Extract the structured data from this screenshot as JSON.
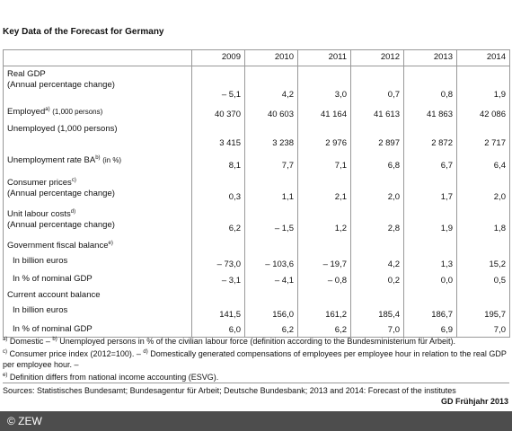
{
  "title": "Key Data of the Forecast for Germany",
  "table": {
    "columns": [
      "2009",
      "2010",
      "2011",
      "2012",
      "2013",
      "2014"
    ],
    "rows": [
      {
        "lines": [
          "Real GDP",
          "(Annual percentage change)"
        ],
        "values": [
          "– 5,1",
          "4,2",
          "3,0",
          "0,7",
          "0,8",
          "1,9"
        ]
      },
      {
        "lines": [
          "Employed"
        ],
        "sup": "a)",
        "suffix": "(1,000 persons)",
        "values": [
          "40 370",
          "40 603",
          "41 164",
          "41 613",
          "41 863",
          "42 086"
        ]
      },
      {
        "lines": [
          "Unemployed (1,000 persons)"
        ],
        "values": [
          "3 415",
          "3 238",
          "2 976",
          "2 897",
          "2 872",
          "2 717"
        ]
      },
      {
        "lines": [
          "Unemployment rate BA"
        ],
        "sup": "b)",
        "suffix": "(in %)",
        "values": [
          "8,1",
          "7,7",
          "7,1",
          "6,8",
          "6,7",
          "6,4"
        ]
      },
      {
        "lines": [
          "Consumer prices",
          "(Annual percentage change)"
        ],
        "sup": "c)",
        "values": [
          "0,3",
          "1,1",
          "2,1",
          "2,0",
          "1,7",
          "2,0"
        ]
      },
      {
        "lines": [
          "Unit labour costs",
          "(Annual percentage change)"
        ],
        "sup": "d)",
        "values": [
          "6,2",
          "– 1,5",
          "1,2",
          "2,8",
          "1,9",
          "1,8"
        ]
      },
      {
        "lines": [
          "Government fiscal balance"
        ],
        "sup": "e)",
        "sub": [
          {
            "label": "In billion euros",
            "values": [
              "– 73,0",
              "– 103,6",
              "– 19,7",
              "4,2",
              "1,3",
              "15,2"
            ]
          },
          {
            "label": "In % of nominal GDP",
            "values": [
              "– 3,1",
              "– 4,1",
              "– 0,8",
              "0,2",
              "0,0",
              "0,5"
            ]
          }
        ]
      },
      {
        "lines": [
          "Current account balance"
        ],
        "sub": [
          {
            "label": "In billion euros",
            "values": [
              "141,5",
              "156,0",
              "161,2",
              "185,4",
              "186,7",
              "195,7"
            ]
          },
          {
            "label": "In % of nominal GDP",
            "values": [
              "6,0",
              "6,2",
              "6,2",
              "7,0",
              "6,9",
              "7,0"
            ]
          }
        ]
      }
    ]
  },
  "footnotes": [
    {
      "mark": "a)",
      "text": "Domestic – "
    },
    {
      "mark": "b)",
      "text": "Unemployed persons in % of the civilian labour force (definition according to the Bundesministerium für Arbeit)."
    },
    {
      "mark": "c)",
      "text": "Consumer price index (2012=100). – "
    },
    {
      "mark": "d)",
      "text": "Domestically generated compensations of employees per employee hour in relation to the real GDP per employee hour. – "
    },
    {
      "mark": "e)",
      "text": "Definition differs from national income accounting (ESVG)."
    }
  ],
  "source": "Sources: Statistisches Bundesamt; Bundesagentur für Arbeit; Deutsche Bundesbank; 2013 and 2014: Forecast of the institutes",
  "edition": "GD Frühjahr 2013",
  "copyright": "© ZEW"
}
